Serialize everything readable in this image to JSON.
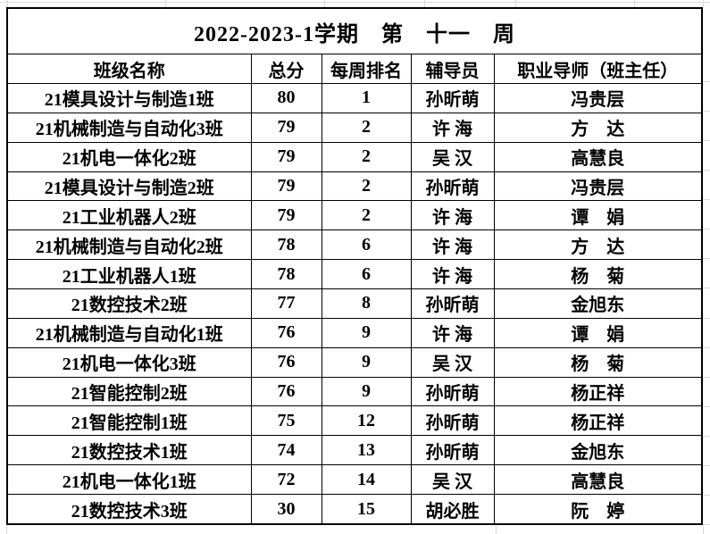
{
  "app": {
    "background_color": "#ffffff",
    "gridline_color": "#d9d9d9",
    "table_border_color": "#000000",
    "text_color": "#000000"
  },
  "title": "2022-2023-1学期　第　十一　周",
  "table": {
    "headers": [
      "班级名称",
      "总分",
      "每周排名",
      "辅导员",
      "职业导师（班主任）"
    ],
    "rows": [
      {
        "class_name": "21模具设计与制造1班",
        "score": "80",
        "rank": "1",
        "counselor": "孙昕萌",
        "mentor": "冯贵层"
      },
      {
        "class_name": "21机械制造与自动化3班",
        "score": "79",
        "rank": "2",
        "counselor": "许 海",
        "mentor": "方　达"
      },
      {
        "class_name": "21机电一体化2班",
        "score": "79",
        "rank": "2",
        "counselor": "吴 汉",
        "mentor": "高慧良"
      },
      {
        "class_name": "21模具设计与制造2班",
        "score": "79",
        "rank": "2",
        "counselor": "孙昕萌",
        "mentor": "冯贵层"
      },
      {
        "class_name": "21工业机器人2班",
        "score": "79",
        "rank": "2",
        "counselor": "许 海",
        "mentor": "谭　娟"
      },
      {
        "class_name": "21机械制造与自动化2班",
        "score": "78",
        "rank": "6",
        "counselor": "许 海",
        "mentor": "方　达"
      },
      {
        "class_name": "21工业机器人1班",
        "score": "78",
        "rank": "6",
        "counselor": "许 海",
        "mentor": "杨　菊"
      },
      {
        "class_name": "21数控技术2班",
        "score": "77",
        "rank": "8",
        "counselor": "孙昕萌",
        "mentor": "金旭东"
      },
      {
        "class_name": "21机械制造与自动化1班",
        "score": "76",
        "rank": "9",
        "counselor": "许 海",
        "mentor": "谭　娟"
      },
      {
        "class_name": "21机电一体化3班",
        "score": "76",
        "rank": "9",
        "counselor": "吴 汉",
        "mentor": "杨　菊"
      },
      {
        "class_name": "21智能控制2班",
        "score": "76",
        "rank": "9",
        "counselor": "孙昕萌",
        "mentor": "杨正祥"
      },
      {
        "class_name": "21智能控制1班",
        "score": "75",
        "rank": "12",
        "counselor": "孙昕萌",
        "mentor": "杨正祥"
      },
      {
        "class_name": "21数控技术1班",
        "score": "74",
        "rank": "13",
        "counselor": "孙昕萌",
        "mentor": "金旭东"
      },
      {
        "class_name": "21机电一体化1班",
        "score": "72",
        "rank": "14",
        "counselor": "吴 汉",
        "mentor": "高慧良"
      },
      {
        "class_name": "21数控技术3班",
        "score": "30",
        "rank": "15",
        "counselor": "胡必胜",
        "mentor": "阮　婷"
      }
    ]
  }
}
